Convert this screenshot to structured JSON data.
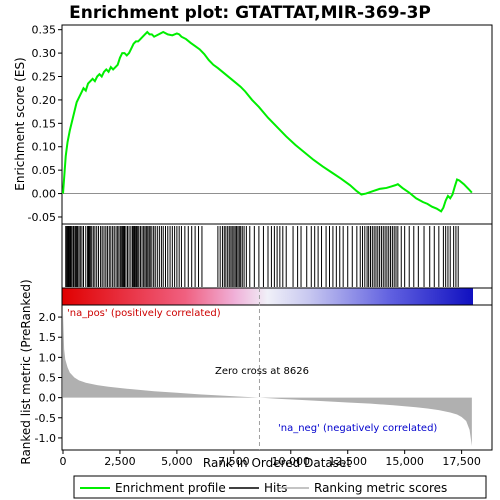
{
  "chart_data": {
    "type": "line",
    "title": "Enrichment plot: GTATTAT,MIR-369-3P",
    "xlabel": "Rank in Ordered Dataset",
    "ylabel_top": "Enrichment score (ES)",
    "ylabel_bottom": "Ranked list metric (PreRanked)",
    "x_range": [
      0,
      18000
    ],
    "es_ylim": [
      -0.065,
      0.36
    ],
    "metric_ylim": [
      -1.3,
      2.3
    ],
    "x_ticks": [
      0,
      2500,
      5000,
      7500,
      10000,
      12500,
      15000,
      17500
    ],
    "x_tick_labels": [
      "0",
      "2,500",
      "5,000",
      "7,500",
      "10,000",
      "12,500",
      "15,000",
      "17,500"
    ],
    "es_ticks": [
      -0.05,
      0.0,
      0.05,
      0.1,
      0.15,
      0.2,
      0.25,
      0.3,
      0.35
    ],
    "es_tick_labels": [
      "-0.05",
      "0.00",
      "0.05",
      "0.10",
      "0.15",
      "0.20",
      "0.25",
      "0.30",
      "0.35"
    ],
    "metric_ticks": [
      -1.0,
      -0.5,
      0.0,
      0.5,
      1.0,
      1.5,
      2.0
    ],
    "metric_tick_labels": [
      "-1.0",
      "-0.5",
      "0.0",
      "0.5",
      "1.0",
      "1.5",
      "2.0"
    ],
    "enrichment_profile": {
      "x": [
        0,
        60,
        120,
        200,
        300,
        400,
        500,
        600,
        700,
        800,
        900,
        1000,
        1100,
        1200,
        1300,
        1400,
        1500,
        1600,
        1700,
        1800,
        1900,
        2000,
        2100,
        2200,
        2300,
        2400,
        2500,
        2600,
        2700,
        2800,
        2900,
        3000,
        3100,
        3200,
        3300,
        3400,
        3500,
        3600,
        3700,
        3800,
        3900,
        4000,
        4200,
        4400,
        4600,
        4800,
        5000,
        5100,
        5200,
        5400,
        5600,
        5800,
        6000,
        6200,
        6400,
        6600,
        6800,
        7000,
        7200,
        7400,
        7600,
        7800,
        8000,
        8300,
        8600,
        9000,
        9400,
        9800,
        10200,
        10600,
        11000,
        11400,
        11800,
        12200,
        12600,
        12900,
        13100,
        13300,
        13600,
        13900,
        14200,
        14400,
        14600,
        14700,
        14900,
        15200,
        15500,
        15800,
        16000,
        16200,
        16400,
        16600,
        16700,
        16800,
        16900,
        17000,
        17100,
        17200,
        17300,
        17400,
        17600,
        17800,
        17950
      ],
      "y": [
        0.0,
        0.04,
        0.08,
        0.11,
        0.135,
        0.155,
        0.175,
        0.195,
        0.205,
        0.215,
        0.225,
        0.22,
        0.235,
        0.24,
        0.245,
        0.24,
        0.25,
        0.255,
        0.25,
        0.26,
        0.265,
        0.26,
        0.27,
        0.265,
        0.27,
        0.275,
        0.29,
        0.3,
        0.3,
        0.295,
        0.3,
        0.31,
        0.32,
        0.325,
        0.325,
        0.33,
        0.335,
        0.34,
        0.345,
        0.34,
        0.34,
        0.335,
        0.34,
        0.345,
        0.34,
        0.338,
        0.342,
        0.34,
        0.335,
        0.33,
        0.322,
        0.315,
        0.308,
        0.298,
        0.285,
        0.275,
        0.268,
        0.26,
        0.252,
        0.244,
        0.236,
        0.228,
        0.218,
        0.2,
        0.185,
        0.162,
        0.142,
        0.122,
        0.104,
        0.088,
        0.072,
        0.058,
        0.045,
        0.032,
        0.018,
        0.005,
        -0.002,
        0.0,
        0.005,
        0.01,
        0.012,
        0.015,
        0.018,
        0.02,
        0.012,
        0.002,
        -0.01,
        -0.018,
        -0.022,
        -0.028,
        -0.032,
        -0.038,
        -0.03,
        -0.015,
        -0.005,
        -0.01,
        -0.002,
        0.015,
        0.03,
        0.028,
        0.02,
        0.01,
        0.002
      ]
    },
    "hits": [
      120,
      160,
      200,
      240,
      270,
      310,
      350,
      400,
      460,
      520,
      560,
      600,
      640,
      700,
      760,
      830,
      900,
      1000,
      1080,
      1120,
      1160,
      1200,
      1260,
      1330,
      1400,
      1480,
      1560,
      1650,
      1720,
      1800,
      1880,
      1950,
      2030,
      2100,
      2180,
      2250,
      2330,
      2400,
      2460,
      2530,
      2580,
      2620,
      2660,
      2700,
      2760,
      2830,
      2900,
      2980,
      3050,
      3100,
      3140,
      3190,
      3230,
      3280,
      3330,
      3400,
      3470,
      3540,
      3600,
      3660,
      3720,
      3780,
      3830,
      3900,
      3980,
      4050,
      4140,
      4230,
      4320,
      4400,
      4500,
      4600,
      4700,
      4800,
      4900,
      5000,
      5100,
      5200,
      5350,
      5500,
      5650,
      5800,
      5950,
      6100,
      6800,
      6900,
      7000,
      7080,
      7150,
      7230,
      7300,
      7370,
      7430,
      7500,
      7560,
      7620,
      7680,
      7740,
      7800,
      7870,
      7950,
      8050,
      8200,
      8400,
      8600,
      8800,
      9000,
      9150,
      9280,
      9400,
      9520,
      9650,
      9800,
      10100,
      10300,
      10450,
      10700,
      10900,
      11050,
      11200,
      11350,
      11550,
      11700,
      11850,
      12000,
      12150,
      12300,
      12500,
      12700,
      12900,
      13050,
      13150,
      13250,
      13350,
      13420,
      13500,
      13580,
      13660,
      13740,
      13820,
      13900,
      13980,
      14060,
      14140,
      14220,
      14300,
      14380,
      14460,
      14540,
      14620,
      14700,
      14850,
      15000,
      15200,
      15400,
      15600,
      15850,
      16100,
      16300,
      16500,
      16700,
      16800,
      16900,
      17000,
      17150,
      17250,
      17350
    ],
    "ranked_metric": {
      "x": [
        0,
        50,
        100,
        200,
        300,
        500,
        700,
        1000,
        1500,
        2000,
        3000,
        4000,
        5000,
        6000,
        7000,
        8000,
        8626,
        9500,
        10500,
        11500,
        12500,
        13500,
        14500,
        15500,
        16000,
        16500,
        17000,
        17300,
        17500,
        17700,
        17850,
        17950
      ],
      "y": [
        2.1,
        1.2,
        0.95,
        0.75,
        0.62,
        0.5,
        0.43,
        0.37,
        0.31,
        0.27,
        0.21,
        0.16,
        0.12,
        0.08,
        0.05,
        0.02,
        0.0,
        -0.03,
        -0.06,
        -0.09,
        -0.12,
        -0.15,
        -0.19,
        -0.24,
        -0.27,
        -0.31,
        -0.37,
        -0.42,
        -0.48,
        -0.58,
        -0.8,
        -1.2
      ]
    },
    "zero_cross_rank": 8626,
    "zero_cross_label": "Zero cross at 8626",
    "pos_label": "'na_pos' (positively correlated)",
    "neg_label": "'na_neg' (negatively correlated)",
    "legend": [
      "Enrichment profile",
      "Hits",
      "Ranking metric scores"
    ],
    "grid": false,
    "colors": {
      "profile": "#00ee00",
      "hits": "#000000",
      "metric_fill": "#b0b0b0",
      "pos_label": "#cc0000",
      "neg_label": "#0000cc",
      "zero_line": "#a0a0a0"
    }
  }
}
